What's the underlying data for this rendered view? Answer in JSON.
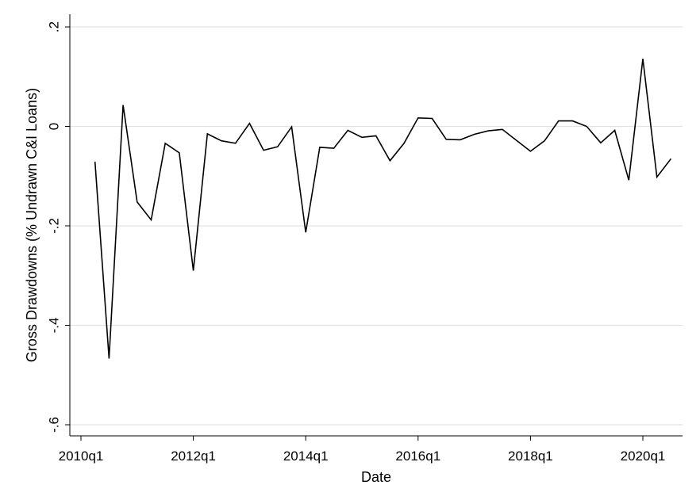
{
  "chart_data": {
    "type": "line",
    "xlabel": "Date",
    "ylabel": "Gross Drawdowns (% Undrawn C&I Loans)",
    "xlim": [
      "2010q1",
      "2020q3"
    ],
    "ylim": [
      -0.6,
      0.2
    ],
    "x_ticks": [
      "2010q1",
      "2012q1",
      "2014q1",
      "2016q1",
      "2018q1",
      "2020q1"
    ],
    "y_ticks": [
      {
        "value": 0.2,
        "label": ".2"
      },
      {
        "value": 0,
        "label": "0"
      },
      {
        "value": -0.2,
        "label": "-.2"
      },
      {
        "value": -0.4,
        "label": "-.4"
      },
      {
        "value": -0.6,
        "label": "-.6"
      }
    ],
    "grid": "horizontal",
    "line_color": "#000000",
    "x": [
      "2010q2",
      "2010q3",
      "2010q4",
      "2011q1",
      "2011q2",
      "2011q3",
      "2011q4",
      "2012q1",
      "2012q2",
      "2012q3",
      "2012q4",
      "2013q1",
      "2013q2",
      "2013q3",
      "2013q4",
      "2014q1",
      "2014q2",
      "2014q3",
      "2014q4",
      "2015q1",
      "2015q2",
      "2015q3",
      "2015q4",
      "2016q1",
      "2016q2",
      "2016q3",
      "2016q4",
      "2017q1",
      "2017q2",
      "2017q3",
      "2017q4",
      "2018q1",
      "2018q2",
      "2018q3",
      "2018q4",
      "2019q1",
      "2019q2",
      "2019q3",
      "2019q4",
      "2020q1",
      "2020q2",
      "2020q3"
    ],
    "values": [
      -0.071,
      -0.467,
      0.043,
      -0.152,
      -0.188,
      -0.034,
      -0.053,
      -0.29,
      -0.015,
      -0.029,
      -0.034,
      0.006,
      -0.048,
      -0.041,
      -0.001,
      -0.213,
      -0.042,
      -0.044,
      -0.008,
      -0.022,
      -0.019,
      -0.069,
      -0.034,
      0.017,
      0.016,
      -0.026,
      -0.027,
      -0.016,
      -0.009,
      -0.006,
      -0.028,
      -0.05,
      -0.029,
      0.011,
      0.011,
      0.0,
      -0.033,
      -0.008,
      -0.108,
      0.136,
      -0.102,
      -0.065
    ]
  }
}
